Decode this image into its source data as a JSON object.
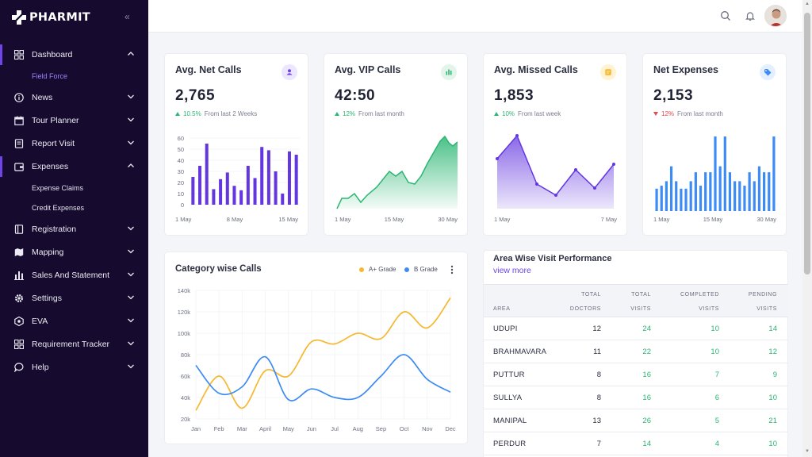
{
  "brand": {
    "name": "PHARMIT"
  },
  "sidebar": {
    "items": [
      {
        "label": "Dashboard",
        "icon": "dashboard-icon",
        "expanded": true,
        "sub": [
          "Field Force"
        ]
      },
      {
        "label": "News",
        "icon": "info-icon",
        "expanded": false
      },
      {
        "label": "Tour Planner",
        "icon": "calendar-icon",
        "expanded": false
      },
      {
        "label": "Report Visit",
        "icon": "report-icon",
        "expanded": false
      },
      {
        "label": "Expenses",
        "icon": "wallet-icon",
        "expanded": true,
        "sub": [
          "Expense Claims",
          "Credit Expenses"
        ]
      },
      {
        "label": "Registration",
        "icon": "book-icon",
        "expanded": false
      },
      {
        "label": "Mapping",
        "icon": "map-icon",
        "expanded": false
      },
      {
        "label": "Sales And Statement",
        "icon": "bar-chart-icon",
        "expanded": false
      },
      {
        "label": "Settings",
        "icon": "gear-icon",
        "expanded": false
      },
      {
        "label": "EVA",
        "icon": "robot-icon",
        "expanded": false
      },
      {
        "label": "Requirement Tracker",
        "icon": "grid-icon",
        "expanded": false
      },
      {
        "label": "Help",
        "icon": "chat-icon",
        "expanded": false
      }
    ]
  },
  "colors": {
    "accent": "#6f45e8",
    "sidebar_bg": "#160b2e",
    "green": "#2bb673",
    "red": "#e5484d",
    "bar_blue": "#3d8bf5",
    "gold": "#f5b82e"
  },
  "stats": [
    {
      "title": "Avg. Net Calls",
      "value": "2,765",
      "change": "10.5%",
      "note": "From last 2 Weeks",
      "dir": "up",
      "badge_icon": "user-icon",
      "badge_color": "#ece6ff",
      "chart": {
        "type": "bar",
        "color": "#6336e0",
        "yticks": [
          "60",
          "50",
          "40",
          "30",
          "20",
          "10",
          "0"
        ],
        "values": [
          25,
          35,
          55,
          14,
          23,
          29,
          17,
          13,
          35,
          24,
          52,
          49,
          30,
          10,
          48,
          45
        ],
        "xlabels": [
          "1 May",
          "8 May",
          "15 May"
        ]
      }
    },
    {
      "title": "Avg. VIP Calls",
      "value": "42:50",
      "change": "12%",
      "note": "From last month",
      "dir": "up",
      "badge_icon": "bar-chart-icon",
      "badge_color": "#e3f5ea",
      "chart": {
        "type": "area",
        "color": "#2bb673",
        "xlabels": [
          "1 May",
          "15 May",
          "30 May"
        ]
      }
    },
    {
      "title": "Avg. Missed Calls",
      "value": "1,853",
      "change": "10%",
      "note": "From last week",
      "dir": "up",
      "badge_icon": "note-icon",
      "badge_color": "#fff3d1",
      "chart": {
        "type": "line",
        "color": "#6336e0",
        "xlabels": [
          "1 May",
          "7 May"
        ]
      }
    },
    {
      "title": "Net Expenses",
      "value": "2,153",
      "change": "12%",
      "note": "From last month",
      "dir": "down",
      "badge_icon": "tag-icon",
      "badge_color": "#e4efff",
      "chart": {
        "type": "bar",
        "color": "#3d8bf5",
        "xlabels": [
          "1 May",
          "15 May",
          "30 May"
        ]
      }
    }
  ],
  "category_chart": {
    "title": "Category wise Calls",
    "legend": [
      {
        "name": "A+ Grade",
        "color": "#f5b82e"
      },
      {
        "name": "B Grade",
        "color": "#3d8bf5"
      }
    ]
  },
  "chart_data": {
    "type": "line",
    "title": "Category wise Calls",
    "categories": [
      "Jan",
      "Feb",
      "Mar",
      "April",
      "May",
      "Jun",
      "Jul",
      "Aug",
      "Sep",
      "Oct",
      "Nov",
      "Dec"
    ],
    "yticks": [
      "140k",
      "120k",
      "100k",
      "80k",
      "60k",
      "40k",
      "20k"
    ],
    "ylim": [
      20000,
      140000
    ],
    "grid": true,
    "legend_position": "top-right",
    "series": [
      {
        "name": "A+ Grade",
        "color": "#f5b82e",
        "values": [
          28000,
          60000,
          30000,
          65000,
          60000,
          92000,
          90000,
          100000,
          95000,
          120000,
          105000,
          133000
        ]
      },
      {
        "name": "B Grade",
        "color": "#3d8bf5",
        "values": [
          70000,
          44000,
          50000,
          78000,
          38000,
          48000,
          40000,
          40000,
          60000,
          80000,
          57000,
          45000
        ]
      }
    ]
  },
  "area_table": {
    "title": "Area Wise Visit Performance",
    "view_more": "view more",
    "headers": [
      [
        "",
        "AREA"
      ],
      [
        "TOTAL",
        "DOCTORS"
      ],
      [
        "TOTAL",
        "VISITS"
      ],
      [
        "COMPLETED",
        "VISITS"
      ],
      [
        "PENDING",
        "VISITS"
      ]
    ],
    "rows": [
      [
        "UDUPI",
        "12",
        "24",
        "10",
        "14"
      ],
      [
        "BRAHMAVARA",
        "11",
        "22",
        "10",
        "12"
      ],
      [
        "PUTTUR",
        "8",
        "16",
        "7",
        "9"
      ],
      [
        "SULLYA",
        "8",
        "16",
        "6",
        "10"
      ],
      [
        "MANIPAL",
        "13",
        "26",
        "5",
        "21"
      ],
      [
        "PERDUR",
        "7",
        "14",
        "4",
        "10"
      ]
    ]
  }
}
